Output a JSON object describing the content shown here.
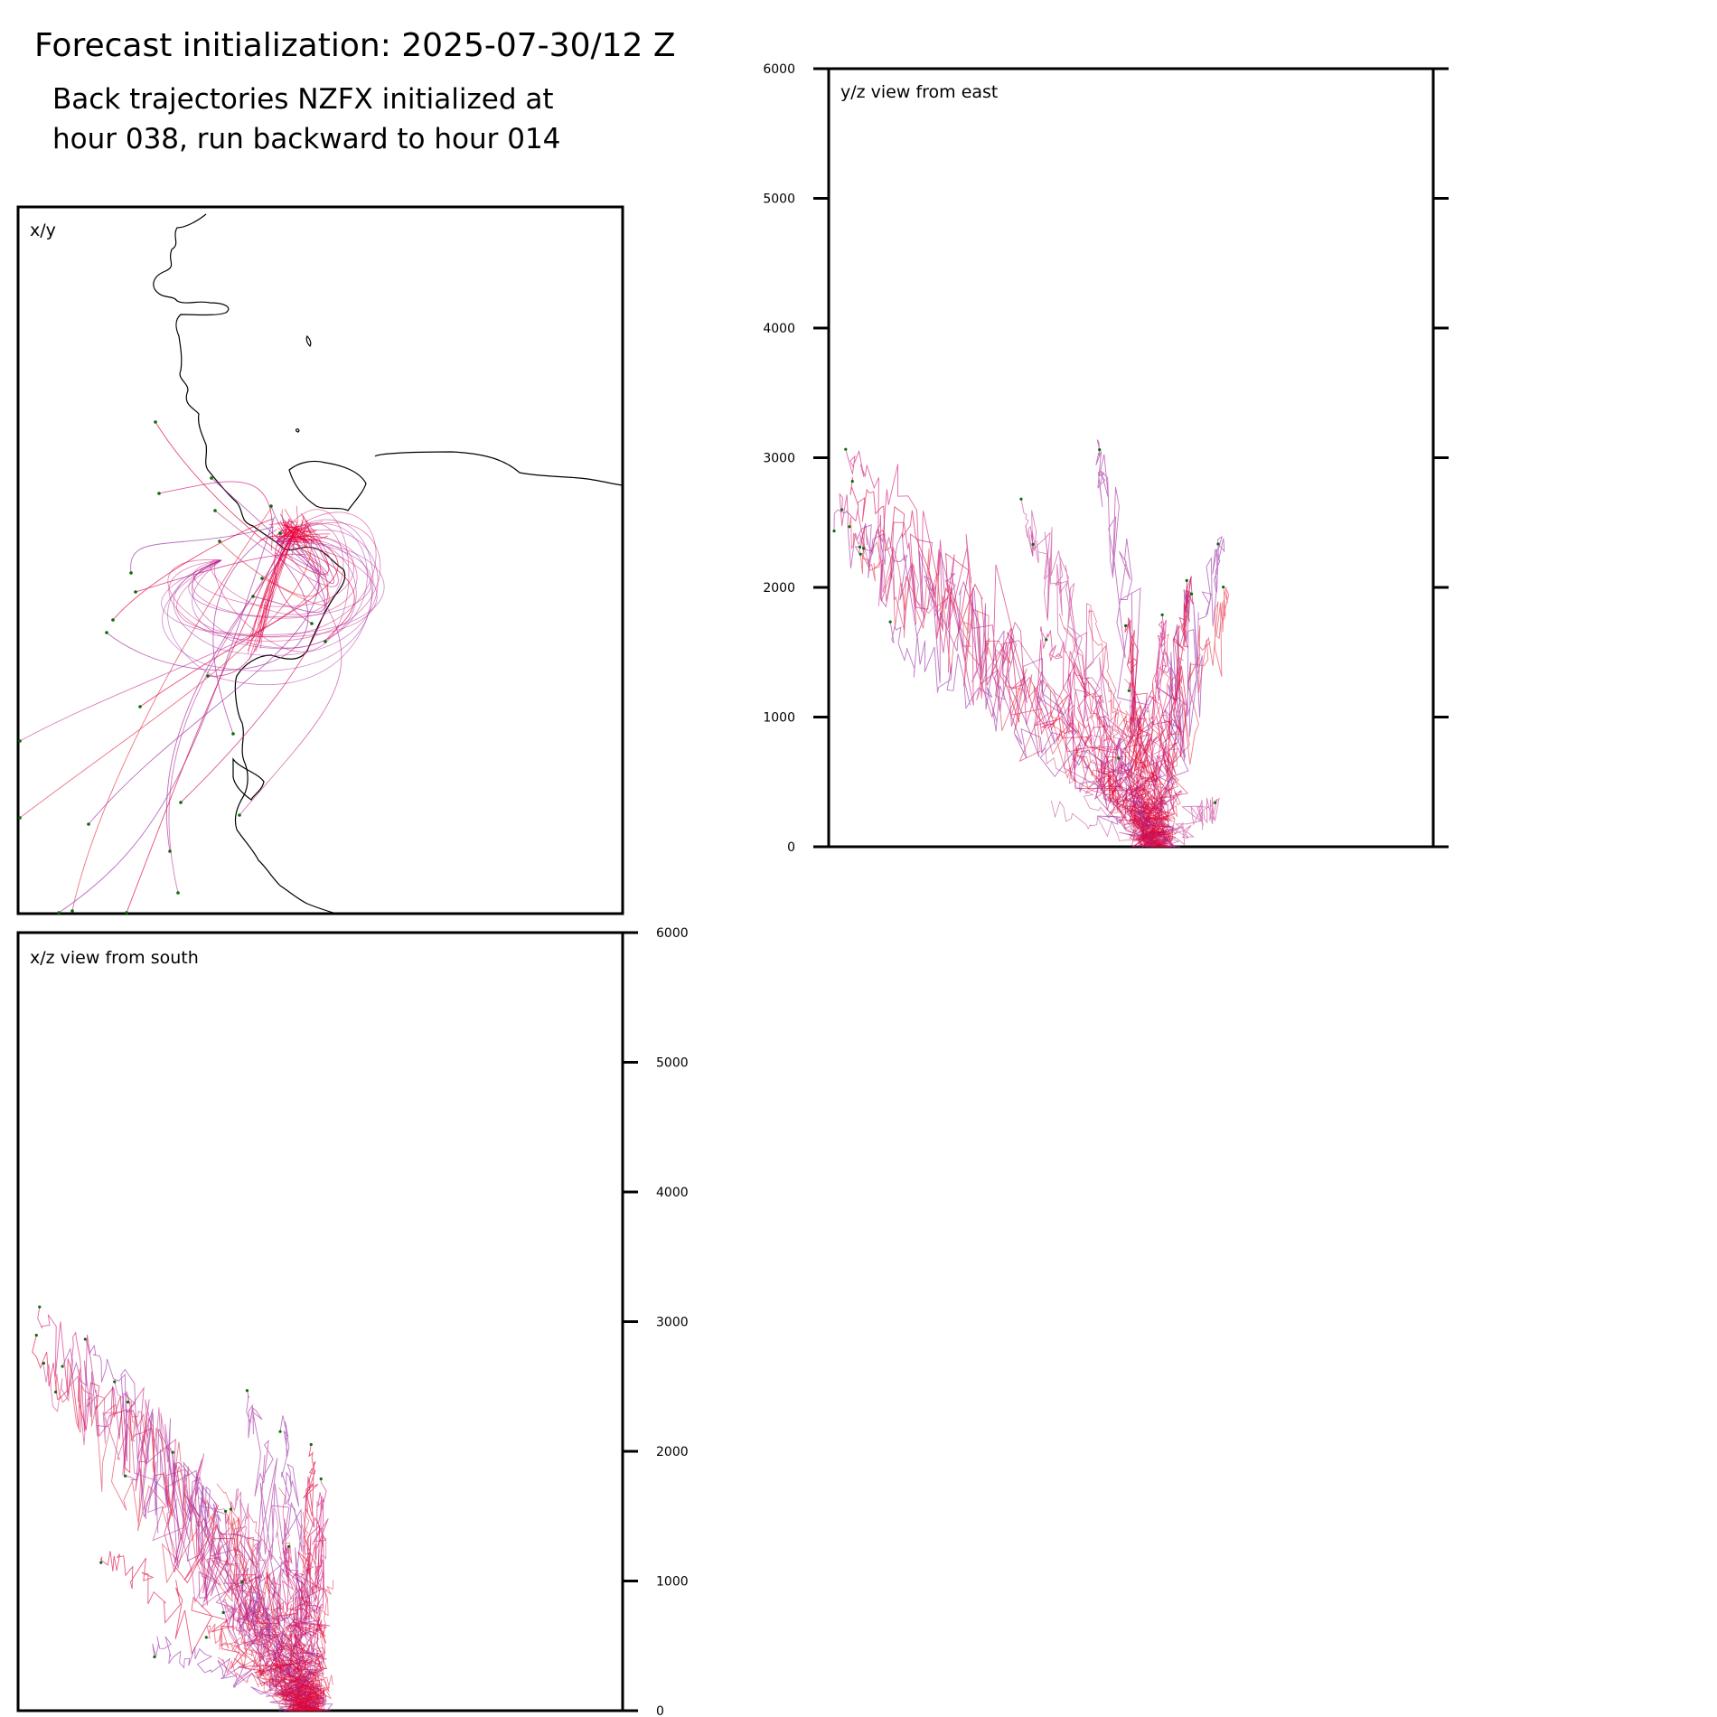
{
  "figure": {
    "title": "Forecast initialization: 2025-07-30/12 Z",
    "subtitle_lines": [
      "Back trajectories NZFX initialized at",
      "hour 038, run backward to hour 014"
    ]
  },
  "colors": {
    "trajectory_palette": [
      "#e0003a",
      "#d0157a",
      "#a52a9f",
      "#c8439a",
      "#e63950",
      "#9b30a8"
    ],
    "endpoint_marker": "#0a6b0a",
    "coastline": "#000000",
    "axes": "#000000"
  },
  "chart_data": [
    {
      "type": "line",
      "panel": "x/y",
      "title": "x/y",
      "description": "Horizontal trajectory paths over coastline map",
      "xlabel": "",
      "ylabel": "",
      "series": []
    },
    {
      "type": "line",
      "panel": "y/z",
      "title": "y/z view from east",
      "xlabel": "",
      "ylabel": "",
      "ylim": [
        0,
        6000
      ],
      "yticks": [
        0,
        1000,
        2000,
        3000,
        4000,
        5000,
        6000
      ],
      "ytick_side": "left",
      "approx_endpoint_heights": [
        2780,
        2650,
        2420,
        2350,
        2200,
        2050,
        1180,
        2980,
        3080,
        2580,
        2450,
        2300,
        1700,
        1600,
        2500,
        2400,
        1900,
        1650,
        2000,
        1700,
        780,
        300
      ]
    },
    {
      "type": "line",
      "panel": "x/z",
      "title": "x/z view from south",
      "xlabel": "",
      "ylabel": "",
      "ylim": [
        0,
        6000
      ],
      "yticks": [
        0,
        1000,
        2000,
        3000,
        4000,
        5000,
        6000
      ],
      "ytick_side": "right",
      "approx_endpoint_heights": [
        2700,
        2600,
        2530,
        2780,
        2800,
        3060,
        2390,
        2450,
        2300,
        2200,
        2000,
        1700,
        1830,
        1650,
        1520,
        1900,
        1200,
        1250,
        950,
        800,
        600,
        500
      ]
    }
  ]
}
